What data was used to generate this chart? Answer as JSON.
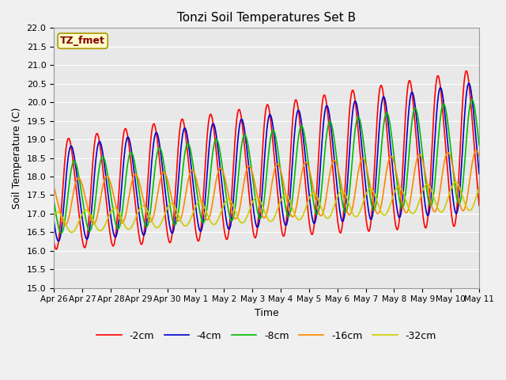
{
  "title": "Tonzi Soil Temperatures Set B",
  "xlabel": "Time",
  "ylabel": "Soil Temperature (C)",
  "ylim": [
    15.0,
    22.0
  ],
  "yticks": [
    15.0,
    15.5,
    16.0,
    16.5,
    17.0,
    17.5,
    18.0,
    18.5,
    19.0,
    19.5,
    20.0,
    20.5,
    21.0,
    21.5,
    22.0
  ],
  "xtick_labels": [
    "Apr 26",
    "Apr 27",
    "Apr 28",
    "Apr 29",
    "Apr 30",
    "May 1",
    "May 2",
    "May 3",
    "May 4",
    "May 5",
    "May 6",
    "May 7",
    "May 8",
    "May 9",
    "May 10",
    "May 11"
  ],
  "series_labels": [
    "-2cm",
    "-4cm",
    "-8cm",
    "-16cm",
    "-32cm"
  ],
  "series_colors": [
    "#ff0000",
    "#0000cc",
    "#00bb00",
    "#ff8800",
    "#cccc00"
  ],
  "line_widths": [
    1.2,
    1.2,
    1.2,
    1.2,
    1.2
  ],
  "annotation_text": "TZ_fmet",
  "annotation_color": "#880000",
  "annotation_bg": "#ffffcc",
  "plot_bg": "#e8e8e8",
  "fig_bg": "#f0f0f0",
  "grid_color": "#ffffff",
  "n_points": 480,
  "base_period": 32,
  "figsize": [
    6.4,
    4.8
  ],
  "dpi": 100
}
